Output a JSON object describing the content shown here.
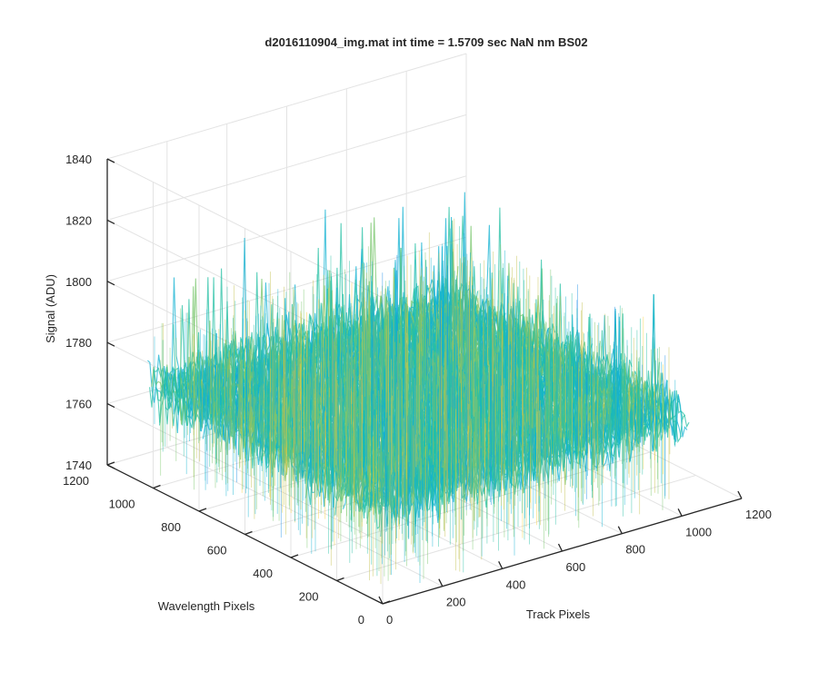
{
  "chart_data": {
    "type": "surface",
    "title": "d2016110904_img.mat int time = 1.5709 sec  NaN nm BS02",
    "xlabel": "Track Pixels",
    "ylabel": "Wavelength Pixels",
    "zlabel": "Signal (ADU)",
    "xlim": [
      0,
      1200
    ],
    "ylim": [
      0,
      1200
    ],
    "zlim": [
      1740,
      1840
    ],
    "xticks": [
      "0",
      "200",
      "400",
      "600",
      "800",
      "1000",
      "1200"
    ],
    "yticks": [
      "0",
      "200",
      "400",
      "600",
      "800",
      "1000",
      "1200"
    ],
    "zticks": [
      "1740",
      "1760",
      "1780",
      "1800",
      "1820",
      "1840"
    ],
    "surface": {
      "x_range": [
        0,
        1024
      ],
      "y_range": [
        0,
        1024
      ],
      "mean_signal": 1772,
      "min_signal": 1742,
      "max_signal": 1838,
      "colormap": "parula"
    },
    "grid": true,
    "view": "3d"
  },
  "colors": {
    "background": "#ffffff",
    "axis": "#262626",
    "grid": "#e3e3e3",
    "colormap": [
      "#3e26a8",
      "#2e4be6",
      "#1e8fe8",
      "#12b2d2",
      "#26c0a4",
      "#78c66c",
      "#c2bf4a",
      "#f7d03c",
      "#f9fb0e"
    ]
  }
}
